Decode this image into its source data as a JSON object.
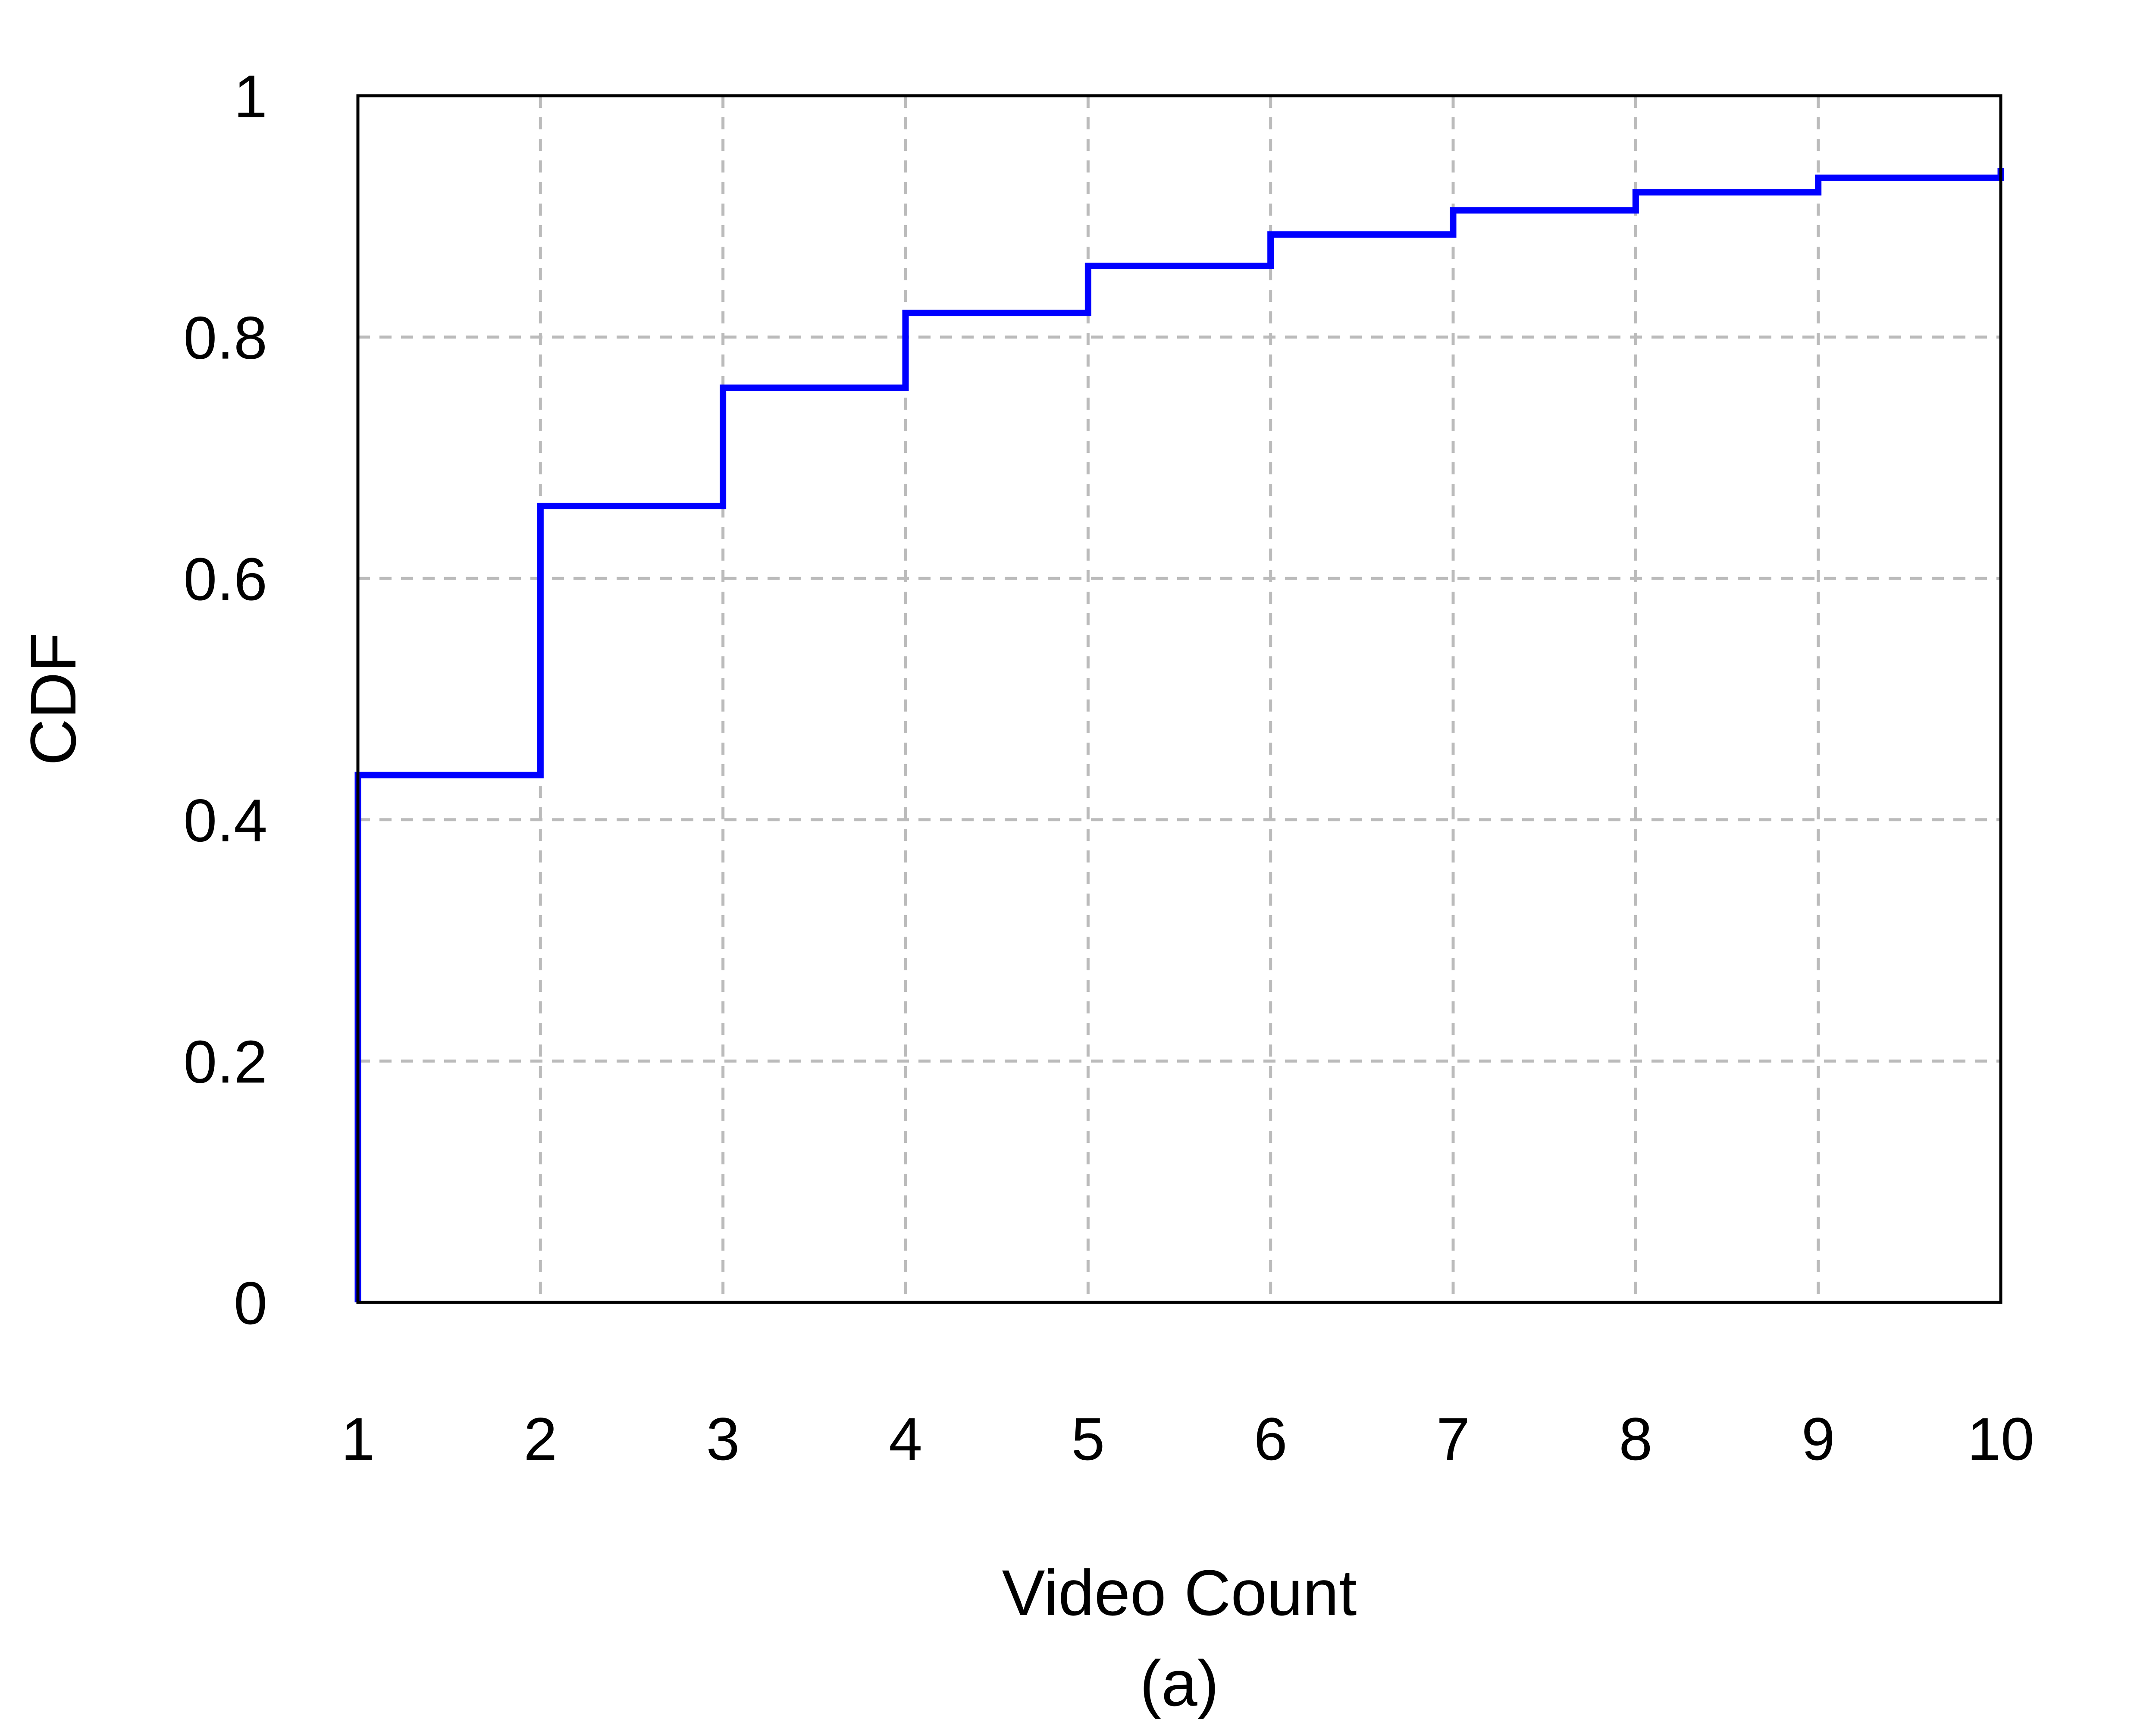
{
  "chart_data": {
    "type": "line",
    "step": true,
    "xlabel": "Video Count",
    "ylabel": "CDF",
    "caption": "(a)",
    "xlim": [
      1,
      10
    ],
    "ylim": [
      0,
      1
    ],
    "x_ticks": [
      "1",
      "2",
      "3",
      "4",
      "5",
      "6",
      "7",
      "8",
      "9",
      "10"
    ],
    "y_ticks": [
      "0",
      "0.2",
      "0.4",
      "0.6",
      "0.8",
      "1"
    ],
    "grid": true,
    "series": [
      {
        "x": [
          1,
          2,
          3,
          4,
          5,
          6,
          7,
          8,
          9,
          10
        ],
        "y": [
          0.437,
          0.66,
          0.758,
          0.82,
          0.859,
          0.885,
          0.905,
          0.92,
          0.932,
          0.94
        ],
        "color": "#0000ff"
      }
    ],
    "colors": {
      "line": "#0000ff",
      "grid": "#bbbbbb",
      "axes": "#000000"
    }
  }
}
